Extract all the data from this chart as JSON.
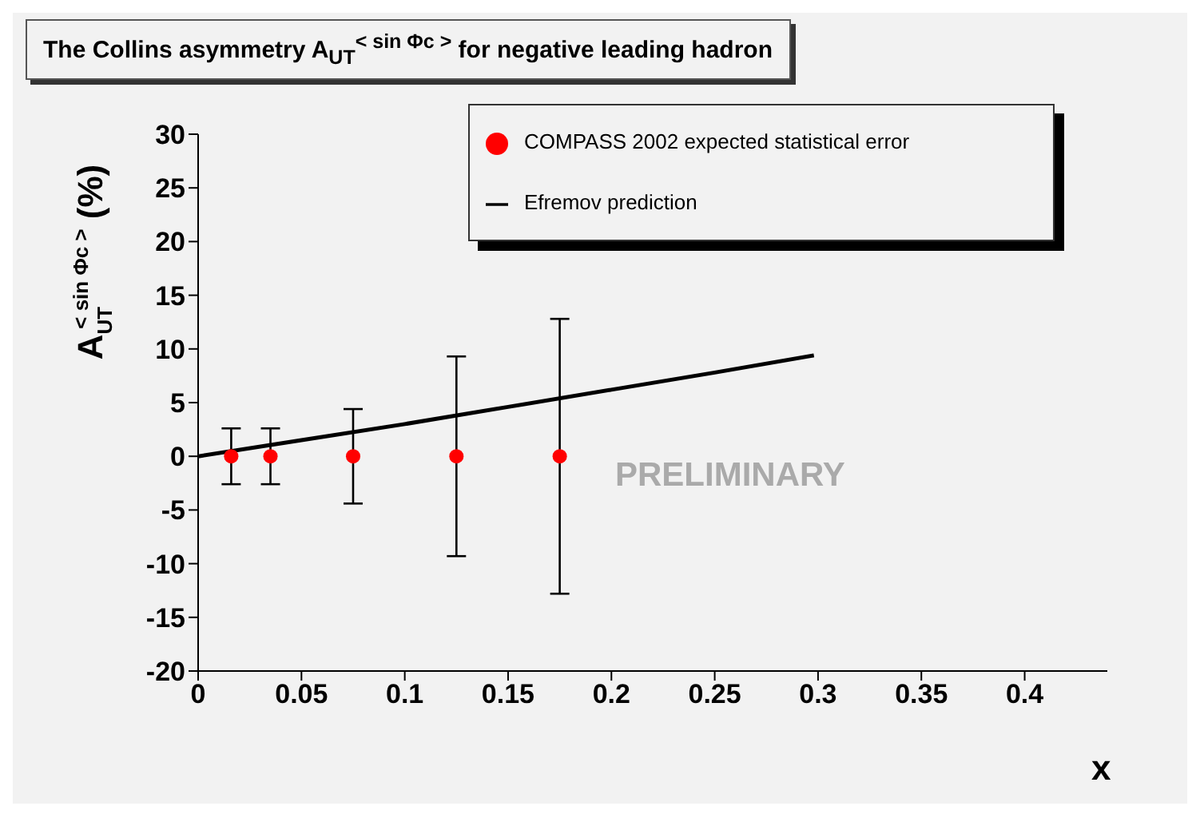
{
  "chart_data": {
    "type": "scatter",
    "title": "The Collins asymmetry A$_{UT}$$^{< sin Φc >}$ for negative leading hadron",
    "xlabel": "x",
    "ylabel": "A$_{UT}$$^{< sin Φc >}$ (%)",
    "series": [
      {
        "name": "COMPASS 2002 expected statistical error",
        "color": "#ff0000",
        "marker": "circle",
        "x": [
          0.016,
          0.035,
          0.075,
          0.125,
          0.175
        ],
        "values": [
          0,
          0,
          0,
          0,
          0
        ],
        "errors": [
          2.6,
          2.6,
          4.4,
          9.3,
          12.8
        ]
      },
      {
        "name": "Efremov prediction",
        "type": "line",
        "color": "#000000",
        "x": [
          0,
          0.05,
          0.1,
          0.15,
          0.2,
          0.25,
          0.298
        ],
        "values": [
          0,
          1.5,
          3.0,
          4.6,
          6.2,
          7.8,
          9.4
        ]
      }
    ],
    "annotations": [
      "PRELIMINARY"
    ],
    "xlim": [
      0,
      0.44
    ],
    "xticks": [
      0,
      0.05,
      0.1,
      0.15,
      0.2,
      0.25,
      0.3,
      0.35,
      0.4
    ],
    "ylim": [
      -20,
      30
    ],
    "yticks": [
      -20,
      -15,
      -10,
      -5,
      0,
      5,
      10,
      15,
      20,
      25,
      30
    ],
    "legend": "top right",
    "grid": false
  }
}
